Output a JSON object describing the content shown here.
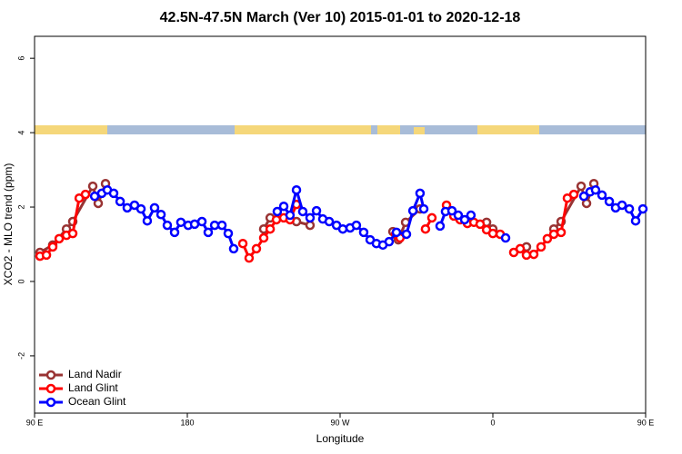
{
  "chart_data": {
    "type": "line",
    "title": "42.5N-47.5N March (Ver 10)   2015-01-01 to 2020-12-18",
    "x_label": "Longitude",
    "y_label": "XCO2 - MLO trend (ppm)",
    "xlim": [
      90,
      450
    ],
    "ylim": [
      -3.54,
      6.59
    ],
    "xticks": [
      {
        "value": 90,
        "label": "90 E"
      },
      {
        "value": 180,
        "label": "180"
      },
      {
        "value": 270,
        "label": "90 W"
      },
      {
        "value": 360,
        "label": "0"
      },
      {
        "value": 450,
        "label": "90 E"
      },
      {
        "value": 540,
        "label": "180"
      }
    ],
    "yticks": [
      -2,
      0,
      2,
      4,
      6
    ],
    "legend": "bottom-left",
    "series": [
      {
        "name": "Land Nadir",
        "color": "#993333",
        "x": [
          93.2,
          100.7,
          108.8,
          112.5,
          124.3,
          127.5,
          131.8,
          null,
          225.0,
          228.8,
          244.3,
          252.3,
          null,
          301.1,
          304.3,
          308.6,
          317.1,
          null,
          356.3,
          360.0,
          null,
          379.8,
          null,
          395.9,
          400.2,
          412.0,
          415.2,
          419.5
        ],
        "values": [
          0.78,
          0.98,
          1.41,
          1.61,
          2.56,
          2.1,
          2.63,
          null,
          1.41,
          1.71,
          1.61,
          1.51,
          null,
          1.34,
          1.12,
          1.59,
          1.95,
          null,
          1.59,
          1.41,
          null,
          0.93,
          null,
          1.41,
          1.61,
          2.56,
          2.1,
          2.63
        ]
      },
      {
        "name": "Land Glint",
        "color": "#ff0000",
        "x": [
          93.2,
          97.0,
          100.7,
          104.5,
          108.8,
          112.5,
          116.3,
          120.0,
          null,
          212.7,
          216.4,
          220.7,
          225.0,
          228.8,
          232.5,
          236.8,
          240.5,
          244.3,
          null,
          302.7,
          305.3,
          null,
          320.3,
          324.1,
          null,
          332.7,
          337.0,
          340.7,
          345.0,
          348.8,
          352.5,
          356.3,
          360.0,
          364.3,
          null,
          372.3,
          376.1,
          379.8,
          384.1,
          388.4,
          392.1,
          395.9,
          400.2,
          403.9,
          407.7
        ],
        "values": [
          0.68,
          0.71,
          0.93,
          1.15,
          1.24,
          1.29,
          2.24,
          2.34,
          null,
          1.02,
          0.63,
          0.88,
          1.17,
          1.41,
          1.66,
          1.71,
          1.66,
          2.07,
          null,
          1.27,
          1.17,
          null,
          1.41,
          1.71,
          null,
          2.05,
          1.76,
          1.66,
          1.56,
          1.59,
          1.54,
          1.39,
          1.29,
          1.27,
          null,
          0.78,
          0.88,
          0.71,
          0.73,
          0.93,
          1.15,
          1.27,
          1.32,
          2.24,
          2.34
        ]
      },
      {
        "name": "Ocean Glint",
        "color": "#0000ff",
        "x": [
          125.4,
          129.6,
          132.9,
          136.6,
          140.4,
          144.6,
          148.9,
          152.7,
          156.4,
          160.7,
          164.5,
          168.2,
          172.5,
          176.2,
          180.5,
          184.3,
          188.6,
          192.3,
          196.1,
          200.4,
          204.1,
          207.3,
          null,
          233.0,
          236.8,
          240.5,
          244.3,
          248.0,
          252.3,
          256.1,
          259.8,
          263.6,
          267.9,
          271.6,
          275.9,
          279.6,
          283.9,
          287.7,
          291.4,
          295.2,
          298.9,
          303.2,
          309.1,
          312.9,
          317.1,
          319.3,
          null,
          328.9,
          332.1,
          335.9,
          339.6,
          343.4,
          347.1,
          null,
          367.5,
          null,
          413.6,
          417.3,
          420.5,
          424.3,
          428.6,
          432.3,
          436.1,
          440.4,
          444.1,
          448.4
        ],
        "values": [
          2.29,
          2.37,
          2.46,
          2.37,
          2.15,
          1.98,
          2.05,
          1.95,
          1.63,
          1.98,
          1.8,
          1.51,
          1.32,
          1.59,
          1.51,
          1.54,
          1.61,
          1.32,
          1.51,
          1.51,
          1.29,
          0.88,
          null,
          1.88,
          2.02,
          1.78,
          2.46,
          1.88,
          1.71,
          1.9,
          1.68,
          1.61,
          1.51,
          1.41,
          1.44,
          1.51,
          1.32,
          1.12,
          1.02,
          0.98,
          1.07,
          1.32,
          1.27,
          1.9,
          2.37,
          1.95,
          null,
          1.49,
          1.88,
          1.9,
          1.78,
          1.66,
          1.78,
          null,
          1.17,
          null,
          2.29,
          2.41,
          2.46,
          2.32,
          2.15,
          1.98,
          2.05,
          1.95,
          1.63,
          1.95
        ]
      }
    ]
  }
}
